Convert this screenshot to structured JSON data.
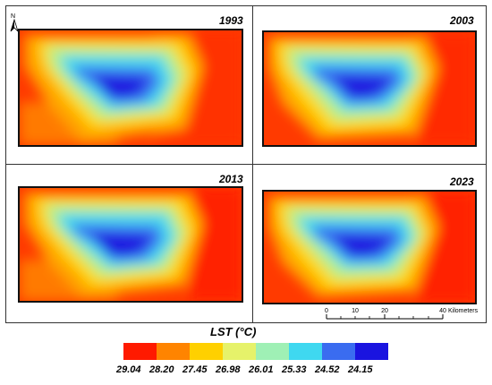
{
  "panels": [
    {
      "year": "1993"
    },
    {
      "year": "2003"
    },
    {
      "year": "2013"
    },
    {
      "year": "2023"
    }
  ],
  "north_arrow": {
    "label": "N"
  },
  "scale_bar": {
    "ticks": [
      "0",
      "10",
      "20",
      "40"
    ],
    "unit": "Kilometers"
  },
  "legend": {
    "title": "LST (°C)",
    "classes": [
      {
        "value": "29.04",
        "color": "#ff1a00"
      },
      {
        "value": "28.20",
        "color": "#ff8400"
      },
      {
        "value": "27.45",
        "color": "#ffd000"
      },
      {
        "value": "26.98",
        "color": "#e6f26a"
      },
      {
        "value": "26.01",
        "color": "#9ff0b5"
      },
      {
        "value": "25.33",
        "color": "#3fd8f0"
      },
      {
        "value": "24.52",
        "color": "#3a6cf0"
      },
      {
        "value": "24.15",
        "color": "#1a14e0"
      }
    ]
  }
}
